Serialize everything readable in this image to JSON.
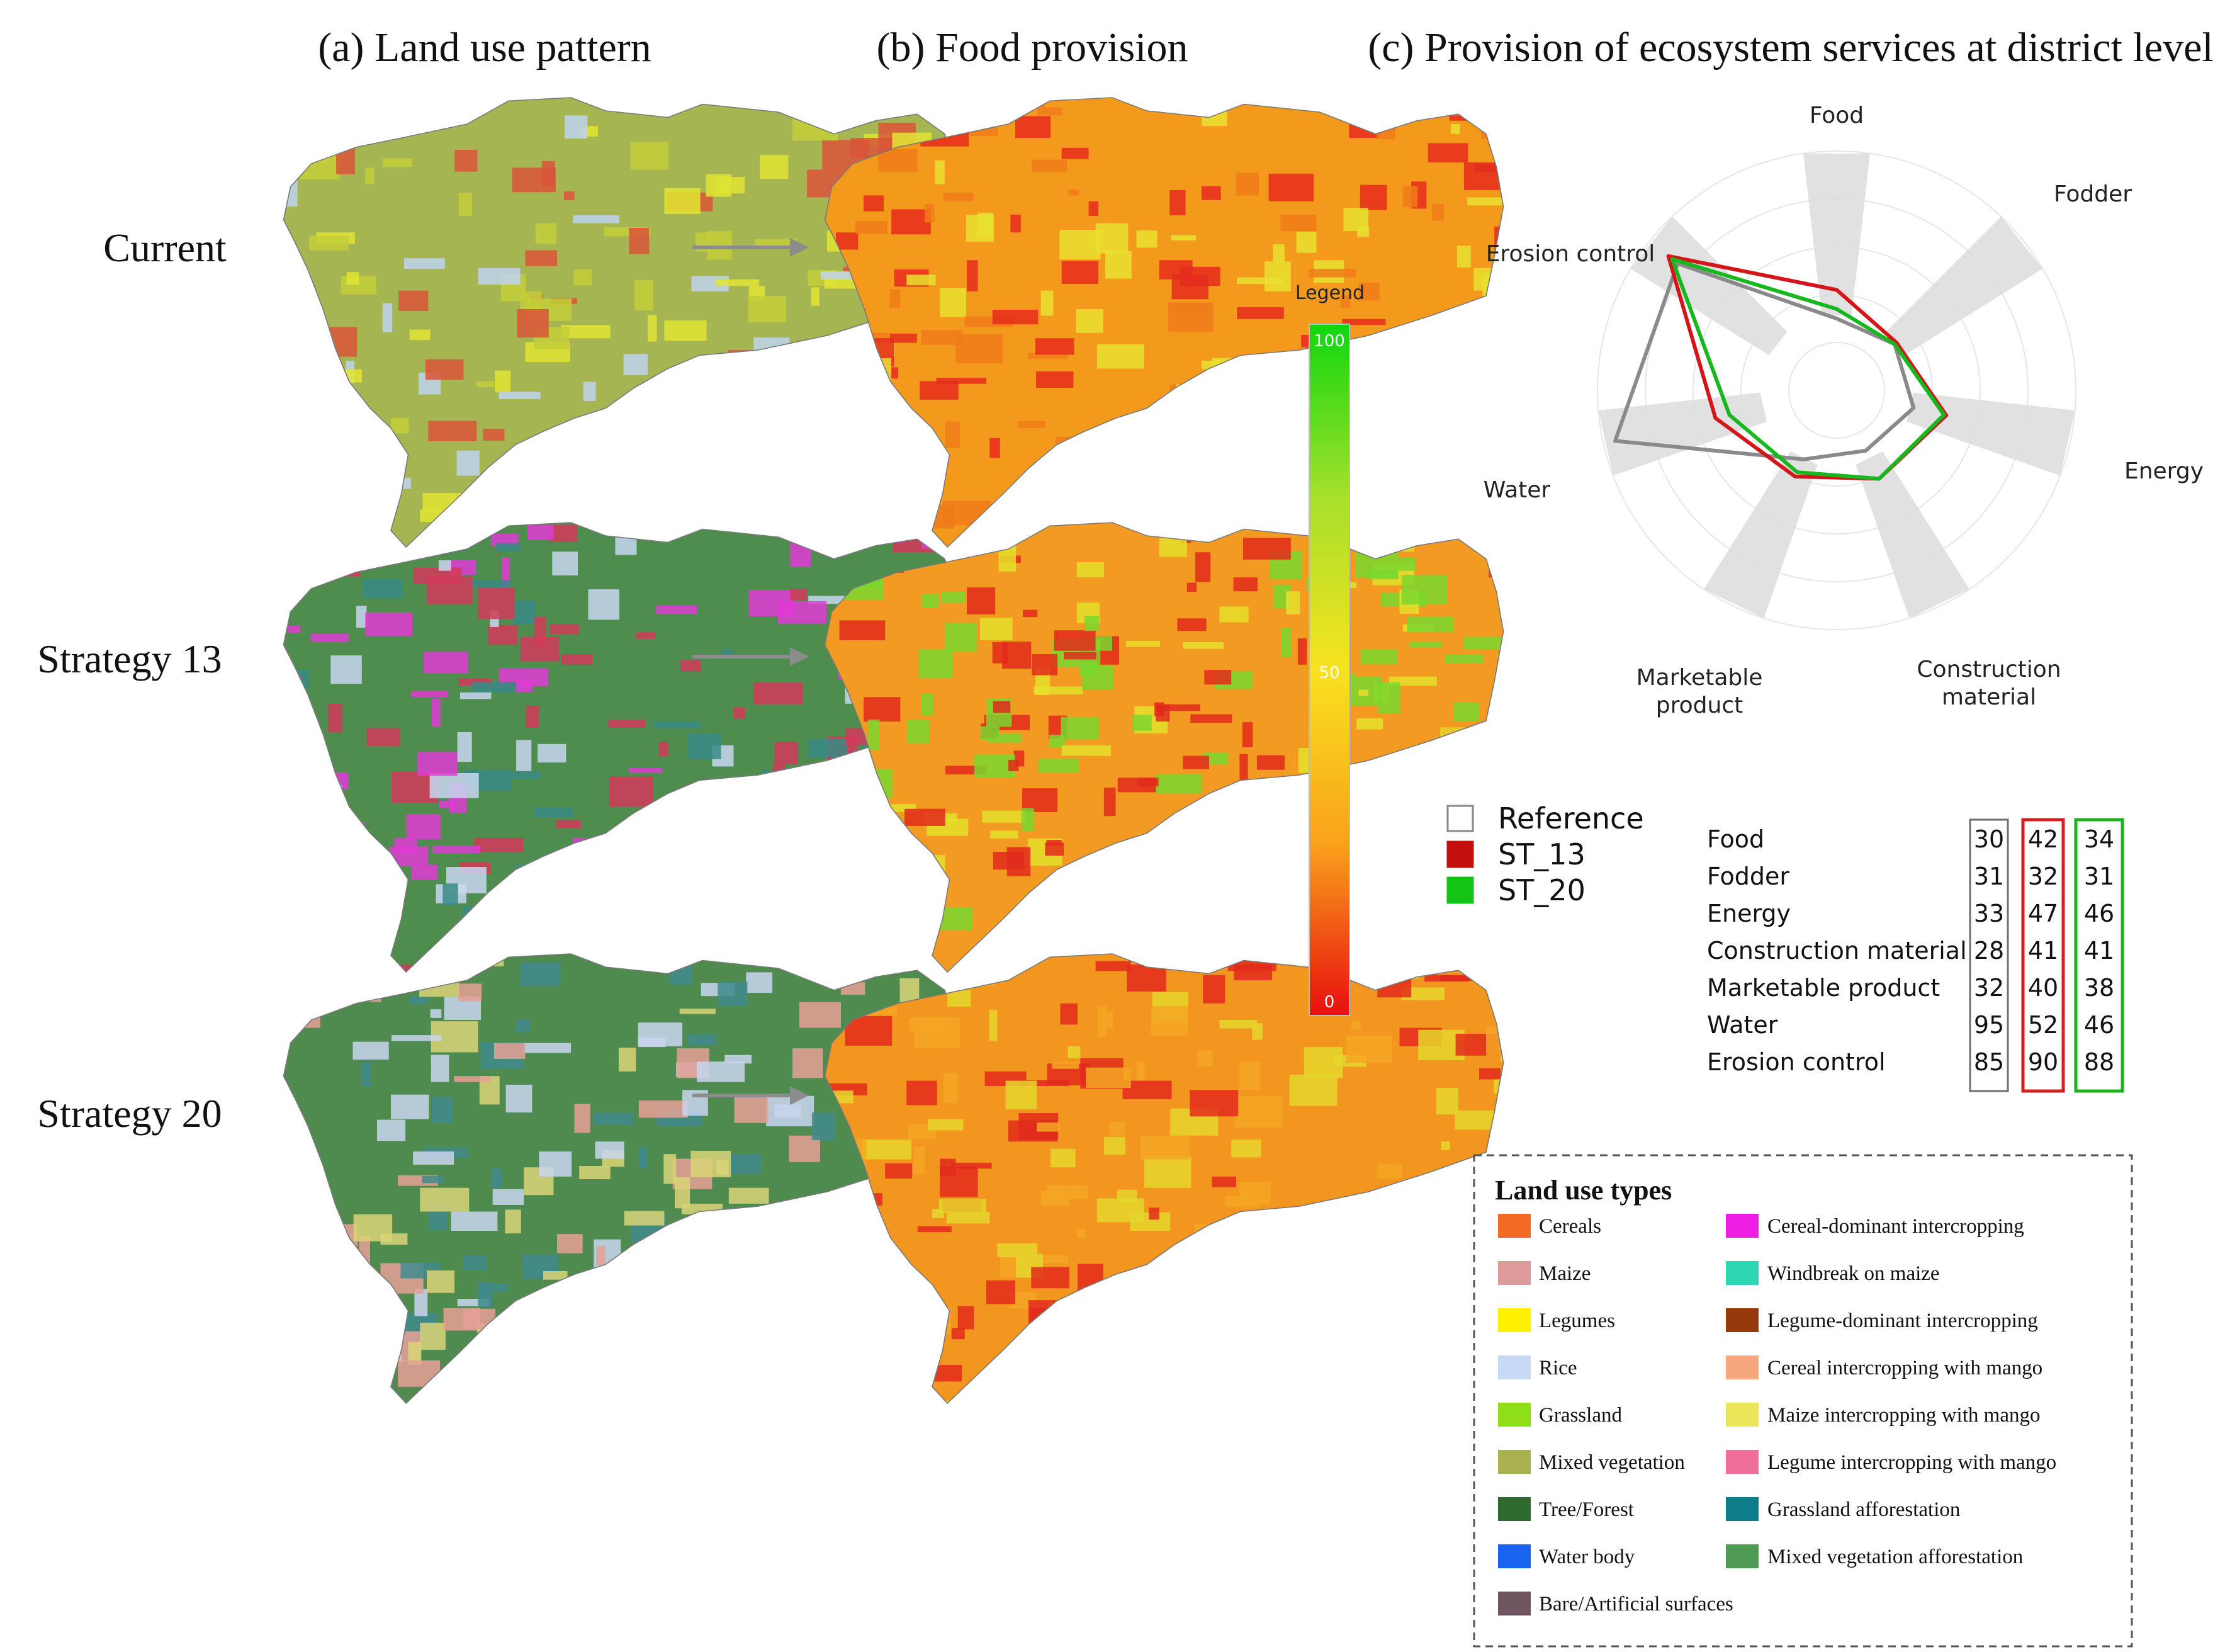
{
  "panels": {
    "a_title": "(a) Land use pattern",
    "b_title": "(b) Food provision",
    "c_title": "(c) Provision of ecosystem services at district level"
  },
  "rows": [
    {
      "label": "Current",
      "lu_colors": [
        "#a5b552",
        "#c3cf3a",
        "#e0e533",
        "#d9553a",
        "#bed3f0"
      ],
      "food_colors": [
        "#f39a1d",
        "#e52b1c",
        "#e8e030",
        "#f07b1a"
      ]
    },
    {
      "label": "Strategy 13",
      "lu_colors": [
        "#4e8d4e",
        "#e23ad6",
        "#3a8a86",
        "#c8d7f1",
        "#d33a5a"
      ],
      "food_colors": [
        "#f29a22",
        "#e22a1c",
        "#7ad72e",
        "#e6df2c"
      ]
    },
    {
      "label": "Strategy 20",
      "lu_colors": [
        "#4f8b4f",
        "#e6a097",
        "#3f8a8c",
        "#c9d5ef",
        "#d9d477"
      ],
      "food_colors": [
        "#f29620",
        "#e32c1c",
        "#e5d62d",
        "#f4a623"
      ]
    }
  ],
  "scale_legend": {
    "title": "Legend",
    "max_label": "100",
    "mid_label": "50",
    "min_label": "0",
    "colors": [
      "#e80f0f",
      "#f9a21b",
      "#f7e21f",
      "#a6e02b",
      "#0fd70f"
    ]
  },
  "radar": {
    "axes": [
      "Food",
      "Fodder",
      "Energy",
      "Construction material",
      "Marketable product",
      "Water",
      "Erosion control"
    ],
    "axis_display": [
      [
        "Food"
      ],
      [
        "Fodder"
      ],
      [
        "Energy"
      ],
      [
        "Construction",
        "material"
      ],
      [
        "Marketable",
        "product"
      ],
      [
        "Water"
      ],
      [
        "Erosion control"
      ]
    ],
    "rmax": 100,
    "series": [
      {
        "name": "Reference",
        "color": "#8a8a8a",
        "values": [
          30,
          31,
          33,
          28,
          32,
          95,
          85
        ]
      },
      {
        "name": "ST_13",
        "color": "#d4161a",
        "values": [
          42,
          32,
          47,
          41,
          40,
          52,
          90
        ]
      },
      {
        "name": "ST_20",
        "color": "#17b81d",
        "values": [
          34,
          31,
          46,
          41,
          38,
          46,
          88
        ]
      }
    ]
  },
  "series_legend": [
    {
      "name": "Reference",
      "color": "#ffffff",
      "border": "#888888"
    },
    {
      "name": "ST_13",
      "color": "#c40f0f",
      "border": "#c40f0f"
    },
    {
      "name": "ST_20",
      "color": "#14c414",
      "border": "#14c414"
    }
  ],
  "table": {
    "rows": [
      "Food",
      "Fodder",
      "Energy",
      "Construction material",
      "Marketable product",
      "Water",
      "Erosion control"
    ],
    "reference": [
      "30",
      "31",
      "33",
      "28",
      "32",
      "95",
      "85"
    ],
    "st13": [
      "42",
      "32",
      "47",
      "41",
      "40",
      "52",
      "90"
    ],
    "st20": [
      "34",
      "31",
      "46",
      "41",
      "38",
      "46",
      "88"
    ],
    "ref_border": "#6e6e6e",
    "st13_border": "#d02020",
    "st20_border": "#1cb31c"
  },
  "land_use": {
    "title": "Land use types",
    "left": [
      {
        "label": "Cereals",
        "color": "#f26a24"
      },
      {
        "label": "Maize",
        "color": "#dd9a9a"
      },
      {
        "label": "Legumes",
        "color": "#fff200"
      },
      {
        "label": "Rice",
        "color": "#c8d9f6"
      },
      {
        "label": "Grassland",
        "color": "#8fde1a"
      },
      {
        "label": "Mixed vegetation",
        "color": "#a9b24e"
      },
      {
        "label": "Tree/Forest",
        "color": "#2f6b2f"
      },
      {
        "label": "Water body",
        "color": "#1863f0"
      },
      {
        "label": "Bare/Artificial  surfaces",
        "color": "#6e5560"
      }
    ],
    "right": [
      {
        "label": "Cereal-dominant intercropping",
        "color": "#ee1ee4"
      },
      {
        "label": "Windbreak on maize",
        "color": "#2fd6b4"
      },
      {
        "label": "Legume-dominant intercropping",
        "color": "#963a0c"
      },
      {
        "label": "Cereal intercropping with mango",
        "color": "#f5a67d"
      },
      {
        "label": "Maize intercropping with mango",
        "color": "#e9e65a"
      },
      {
        "label": "Legume intercropping with mango",
        "color": "#f06f99"
      },
      {
        "label": "Grassland afforestation",
        "color": "#0f7c8b"
      },
      {
        "label": "Mixed vegetation afforestation",
        "color": "#4f9a55"
      }
    ]
  }
}
